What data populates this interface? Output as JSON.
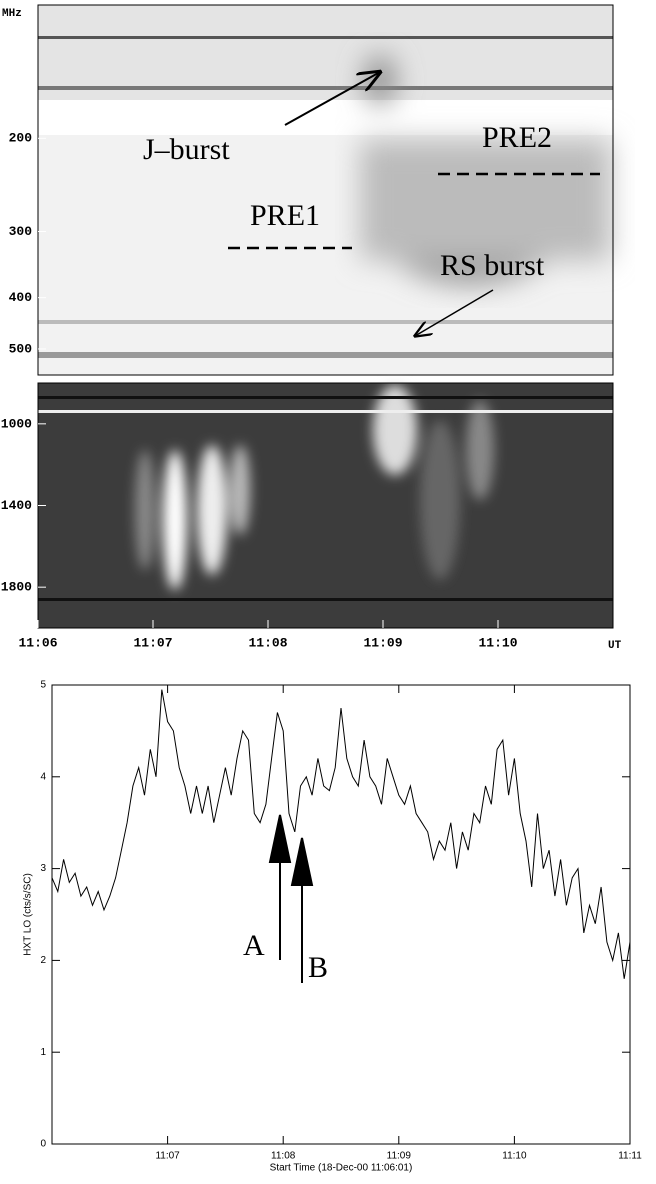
{
  "chart_data": [
    {
      "type": "spectrogram",
      "ylabel": "MHz",
      "yscale": "log",
      "ylim": [
        112,
        560
      ],
      "yticks": [
        200,
        300,
        400,
        500
      ],
      "annotations": [
        "J–burst",
        "PRE2",
        "PRE1",
        "RS burst"
      ]
    },
    {
      "type": "spectrogram",
      "ylim": [
        800,
        2000
      ],
      "yticks": [
        1000,
        1400,
        1800
      ],
      "xlim": [
        0,
        5
      ],
      "xticks": [
        {
          "value": 0,
          "label": "11:06"
        },
        {
          "value": 1,
          "label": "11:07"
        },
        {
          "value": 2,
          "label": "11:08"
        },
        {
          "value": 3,
          "label": "11:09"
        },
        {
          "value": 4,
          "label": "11:10"
        }
      ],
      "xlabel": "UT"
    },
    {
      "type": "line",
      "ylabel": "HXT LO (cts/s/SC)",
      "xlabel": "Start Time (18-Dec-00 11:06:01)",
      "color": "#000000",
      "xlim": [
        0,
        5
      ],
      "xticks": [
        {
          "value": 1,
          "label": "11:07"
        },
        {
          "value": 2,
          "label": "11:08"
        },
        {
          "value": 3,
          "label": "11:09"
        },
        {
          "value": 4,
          "label": "11:10"
        },
        {
          "value": 5,
          "label": "11:11"
        }
      ],
      "ylim": [
        0,
        5
      ],
      "yticks": [
        0,
        1,
        2,
        3,
        4,
        5
      ],
      "x": [
        0,
        0.05,
        0.1,
        0.15,
        0.2,
        0.25,
        0.3,
        0.35,
        0.4,
        0.45,
        0.5,
        0.55,
        0.6,
        0.65,
        0.7,
        0.75,
        0.8,
        0.85,
        0.9,
        0.95,
        1,
        1.05,
        1.1,
        1.15,
        1.2,
        1.25,
        1.3,
        1.35,
        1.4,
        1.45,
        1.5,
        1.55,
        1.6,
        1.65,
        1.7,
        1.75,
        1.8,
        1.85,
        1.9,
        1.95,
        2,
        2.05,
        2.1,
        2.15,
        2.2,
        2.25,
        2.3,
        2.35,
        2.4,
        2.45,
        2.5,
        2.55,
        2.6,
        2.65,
        2.7,
        2.75,
        2.8,
        2.85,
        2.9,
        2.95,
        3,
        3.05,
        3.1,
        3.15,
        3.2,
        3.25,
        3.3,
        3.35,
        3.4,
        3.45,
        3.5,
        3.55,
        3.6,
        3.65,
        3.7,
        3.75,
        3.8,
        3.85,
        3.9,
        3.95,
        4,
        4.05,
        4.1,
        4.15,
        4.2,
        4.25,
        4.3,
        4.35,
        4.4,
        4.45,
        4.5,
        4.55,
        4.6,
        4.65,
        4.7,
        4.75,
        4.8,
        4.85,
        4.9,
        4.95,
        5
      ],
      "values": [
        2.9,
        2.75,
        3.1,
        2.85,
        2.95,
        2.7,
        2.8,
        2.6,
        2.75,
        2.55,
        2.7,
        2.9,
        3.2,
        3.5,
        3.9,
        4.1,
        3.8,
        4.3,
        4.0,
        4.95,
        4.6,
        4.5,
        4.1,
        3.9,
        3.6,
        3.9,
        3.6,
        3.9,
        3.5,
        3.8,
        4.1,
        3.8,
        4.2,
        4.5,
        4.4,
        3.6,
        3.5,
        3.7,
        4.2,
        4.7,
        4.5,
        3.6,
        3.4,
        3.9,
        4.0,
        3.8,
        4.2,
        3.9,
        3.85,
        4.1,
        4.75,
        4.2,
        4.0,
        3.9,
        4.4,
        4.0,
        3.9,
        3.7,
        4.2,
        4.0,
        3.8,
        3.7,
        3.9,
        3.6,
        3.5,
        3.4,
        3.1,
        3.3,
        3.2,
        3.5,
        3.0,
        3.4,
        3.2,
        3.6,
        3.5,
        3.9,
        3.7,
        4.3,
        4.4,
        3.8,
        4.2,
        3.6,
        3.3,
        2.8,
        3.6,
        3.0,
        3.2,
        2.7,
        3.1,
        2.6,
        2.9,
        3.0,
        2.3,
        2.6,
        2.4,
        2.8,
        2.2,
        2.0,
        2.3,
        1.8,
        2.2
      ],
      "annotations": [
        "A",
        "B"
      ]
    }
  ]
}
